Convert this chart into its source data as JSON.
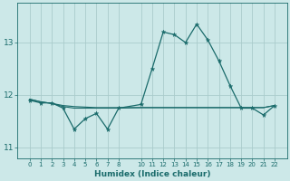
{
  "xlabel": "Humidex (Indice chaleur)",
  "background_color": "#cce8e8",
  "grid_color": "#aacccc",
  "line_color": "#1a6b6b",
  "x_values": [
    0,
    1,
    2,
    3,
    4,
    5,
    6,
    7,
    8,
    10,
    11,
    12,
    13,
    14,
    15,
    16,
    17,
    18,
    19,
    20,
    21,
    22
  ],
  "line1_y": [
    11.9,
    11.85,
    11.85,
    11.75,
    11.35,
    11.55,
    11.65,
    11.35,
    11.75,
    11.82,
    12.5,
    13.2,
    13.15,
    13.0,
    13.35,
    13.05,
    12.65,
    12.18,
    11.75,
    11.75,
    11.62,
    11.8
  ],
  "line2_y": [
    11.92,
    11.87,
    11.84,
    11.8,
    11.78,
    11.77,
    11.76,
    11.76,
    11.76,
    11.76,
    11.76,
    11.76,
    11.76,
    11.76,
    11.76,
    11.76,
    11.76,
    11.76,
    11.76,
    11.76,
    11.76,
    11.8
  ],
  "line3_y": [
    11.92,
    11.87,
    11.84,
    11.78,
    11.75,
    11.75,
    11.75,
    11.75,
    11.75,
    11.76,
    11.76,
    11.76,
    11.76,
    11.76,
    11.76,
    11.76,
    11.76,
    11.76,
    11.76,
    11.76,
    11.76,
    11.8
  ],
  "ylim": [
    10.8,
    13.75
  ],
  "yticks": [
    11,
    12,
    13
  ],
  "xticks": [
    0,
    1,
    2,
    3,
    4,
    5,
    6,
    7,
    8,
    10,
    11,
    12,
    13,
    14,
    15,
    16,
    17,
    18,
    19,
    20,
    21,
    22
  ]
}
